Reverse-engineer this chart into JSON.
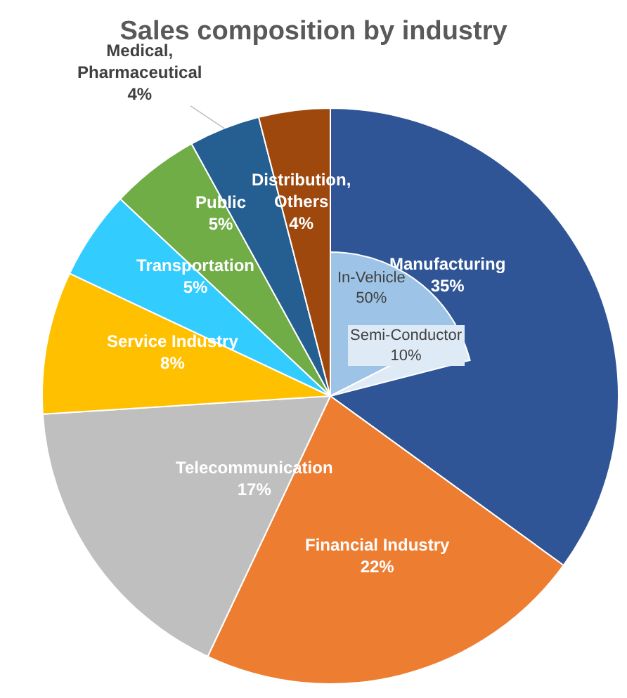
{
  "chart_data": [
    {
      "type": "pie",
      "title": "Sales composition by industry",
      "categories": [
        "Manufacturing",
        "Financial Industry",
        "Telecommunication",
        "Service Industry",
        "Transportation",
        "Public",
        "Medical, Pharmaceutical",
        "Distribution, Others"
      ],
      "values": [
        35,
        22,
        17,
        8,
        5,
        5,
        4,
        4
      ],
      "value_labels": [
        "35%",
        "22%",
        "17%",
        "8%",
        "5%",
        "5%",
        "4%",
        "4%"
      ],
      "colors": [
        "#2f5597",
        "#ed7d31",
        "#bfbfbf",
        "#ffc000",
        "#33ccff",
        "#70ad47",
        "#255e91",
        "#9e480e"
      ],
      "legend": false
    },
    {
      "type": "pie",
      "categories": [
        "In-Vehicle",
        "Semi-Conductor"
      ],
      "values": [
        50,
        10
      ],
      "value_labels": [
        "50%",
        "10%"
      ],
      "colors": [
        "#9dc3e6",
        "#deebf7"
      ],
      "legend": false
    }
  ]
}
